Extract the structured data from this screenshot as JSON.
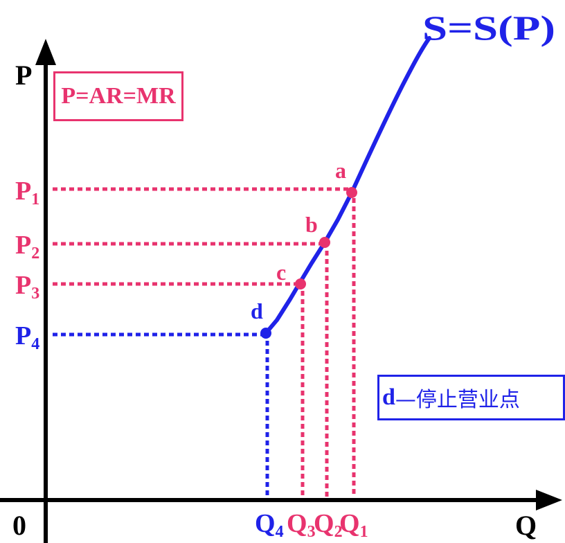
{
  "colors": {
    "axis": "#000000",
    "supply_curve": "#1f22e8",
    "points": "#e8336e",
    "shutdown": "#1f22e8"
  },
  "axes": {
    "origin": "0",
    "y_label": "P",
    "x_label": "Q"
  },
  "curve_label": "S=S(P)",
  "price_rule_box": "P=AR=MR",
  "shutdown_note": {
    "letter": "d",
    "text": "—停止营业点"
  },
  "points": [
    {
      "name": "a",
      "price": {
        "base": "P",
        "sub": "1"
      },
      "quantity": {
        "base": "Q",
        "sub": "1"
      },
      "color": "#e8336e"
    },
    {
      "name": "b",
      "price": {
        "base": "P",
        "sub": "2"
      },
      "quantity": {
        "base": "Q",
        "sub": "2"
      },
      "color": "#e8336e"
    },
    {
      "name": "c",
      "price": {
        "base": "P",
        "sub": "3"
      },
      "quantity": {
        "base": "Q",
        "sub": "3"
      },
      "color": "#e8336e"
    },
    {
      "name": "d",
      "price": {
        "base": "P",
        "sub": "4"
      },
      "quantity": {
        "base": "Q",
        "sub": "4"
      },
      "color": "#1f22e8"
    }
  ]
}
